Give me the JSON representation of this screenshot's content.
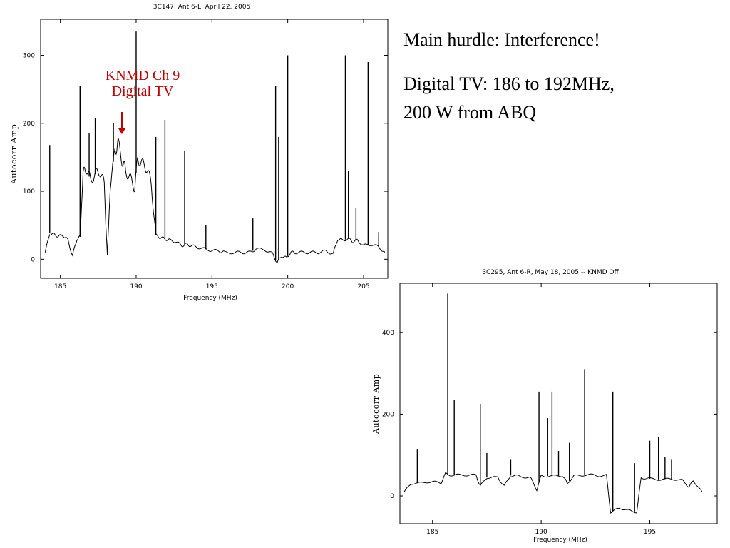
{
  "slide": {
    "heading": "Main hurdle: Interference!",
    "body_line1": "Digital TV: 186 to 192MHz,",
    "body_line2": "200 W from ABQ"
  },
  "annotation": {
    "line1": "KNMD Ch 9",
    "line2": "Digital TV",
    "color": "#c00000",
    "points_to_x": 188.8
  },
  "chart_data": [
    {
      "type": "line",
      "title": "3C147, Ant 6-L, April 22, 2005",
      "xlabel": "Frequency (MHz)",
      "ylabel": "Autocorr Amp",
      "xlim": [
        183.7,
        206.6
      ],
      "ylim": [
        -28,
        353
      ],
      "xticks": [
        185,
        190,
        195,
        200,
        205
      ],
      "yticks": [
        0,
        100,
        200,
        300
      ],
      "series": [
        {
          "x": [
            184.0,
            184.3,
            184.6,
            184.9,
            185.2,
            185.5,
            185.8,
            186.1,
            186.3,
            186.5,
            186.7,
            187.0,
            187.3,
            187.6,
            187.9,
            188.1,
            188.3,
            188.6,
            188.8,
            189.1,
            189.3,
            189.6,
            189.9,
            190.1,
            190.4,
            190.7,
            191.0,
            191.3,
            191.6,
            191.9,
            192.2,
            192.6,
            193.0,
            193.3,
            193.6,
            194.0,
            194.5,
            195.0,
            195.5,
            195.8,
            196.5,
            197.0,
            197.5,
            197.9,
            198.5,
            199.0,
            199.3,
            199.6,
            199.9,
            200.2,
            200.5,
            201.0,
            201.5,
            202.0,
            202.5,
            203.0,
            203.3,
            203.6,
            204.0,
            204.3,
            204.6,
            205.0,
            205.5,
            206.0,
            206.4
          ],
          "values": [
            10,
            38,
            36,
            34,
            35,
            28,
            5,
            30,
            33,
            125,
            135,
            115,
            125,
            130,
            110,
            5,
            110,
            160,
            170,
            145,
            130,
            120,
            105,
            150,
            140,
            135,
            110,
            35,
            32,
            30,
            28,
            26,
            20,
            22,
            20,
            18,
            15,
            13,
            12,
            10,
            10,
            10,
            10,
            15,
            14,
            8,
            -5,
            5,
            2,
            10,
            10,
            10,
            10,
            10,
            12,
            8,
            30,
            28,
            30,
            26,
            28,
            20,
            22,
            18,
            10
          ],
          "spikes": [
            [
              184.3,
              168
            ],
            [
              186.3,
              255
            ],
            [
              186.9,
              185
            ],
            [
              187.3,
              208
            ],
            [
              188.5,
              200
            ],
            [
              190.0,
              335
            ],
            [
              191.3,
              180
            ],
            [
              191.9,
              205
            ],
            [
              193.2,
              160
            ],
            [
              194.6,
              50
            ],
            [
              197.7,
              60
            ],
            [
              199.2,
              255
            ],
            [
              199.4,
              180
            ],
            [
              200.0,
              300
            ],
            [
              203.8,
              300
            ],
            [
              204.0,
              130
            ],
            [
              204.5,
              75
            ],
            [
              205.3,
              290
            ],
            [
              206.0,
              40
            ]
          ]
        }
      ]
    },
    {
      "type": "line",
      "title": "3C295, Ant 6-R, May 18, 2005 -- KNMD Off",
      "xlabel": "Frequency (MHz)",
      "ylabel": "Autocorr Amp",
      "xlim": [
        183.5,
        198.1
      ],
      "ylim": [
        -68,
        520
      ],
      "xticks": [
        185,
        190,
        195
      ],
      "yticks": [
        0,
        200,
        400
      ],
      "series": [
        {
          "x": [
            183.7,
            184.0,
            184.5,
            185.0,
            185.4,
            185.6,
            186.0,
            186.5,
            187.0,
            187.2,
            187.5,
            188.0,
            188.3,
            188.6,
            189.0,
            189.5,
            189.8,
            190.0,
            190.5,
            191.0,
            191.2,
            191.5,
            192.0,
            192.5,
            193.0,
            193.2,
            193.6,
            194.0,
            194.4,
            194.6,
            195.0,
            195.5,
            196.0,
            196.5,
            196.8,
            197.0,
            197.4
          ],
          "values": [
            10,
            30,
            32,
            35,
            32,
            55,
            50,
            52,
            50,
            25,
            45,
            45,
            25,
            50,
            48,
            45,
            15,
            50,
            48,
            50,
            30,
            48,
            52,
            50,
            50,
            -40,
            -30,
            -35,
            -40,
            45,
            42,
            40,
            42,
            38,
            22,
            38,
            10
          ],
          "spikes": [
            [
              184.3,
              115
            ],
            [
              185.7,
              495
            ],
            [
              186.0,
              235
            ],
            [
              187.2,
              225
            ],
            [
              187.5,
              105
            ],
            [
              188.6,
              90
            ],
            [
              189.9,
              255
            ],
            [
              190.3,
              190
            ],
            [
              190.5,
              255
            ],
            [
              190.8,
              110
            ],
            [
              191.3,
              130
            ],
            [
              192.0,
              310
            ],
            [
              193.3,
              255
            ],
            [
              194.3,
              80
            ],
            [
              195.0,
              135
            ],
            [
              195.4,
              145
            ],
            [
              195.7,
              95
            ],
            [
              196.0,
              90
            ]
          ]
        }
      ]
    }
  ]
}
